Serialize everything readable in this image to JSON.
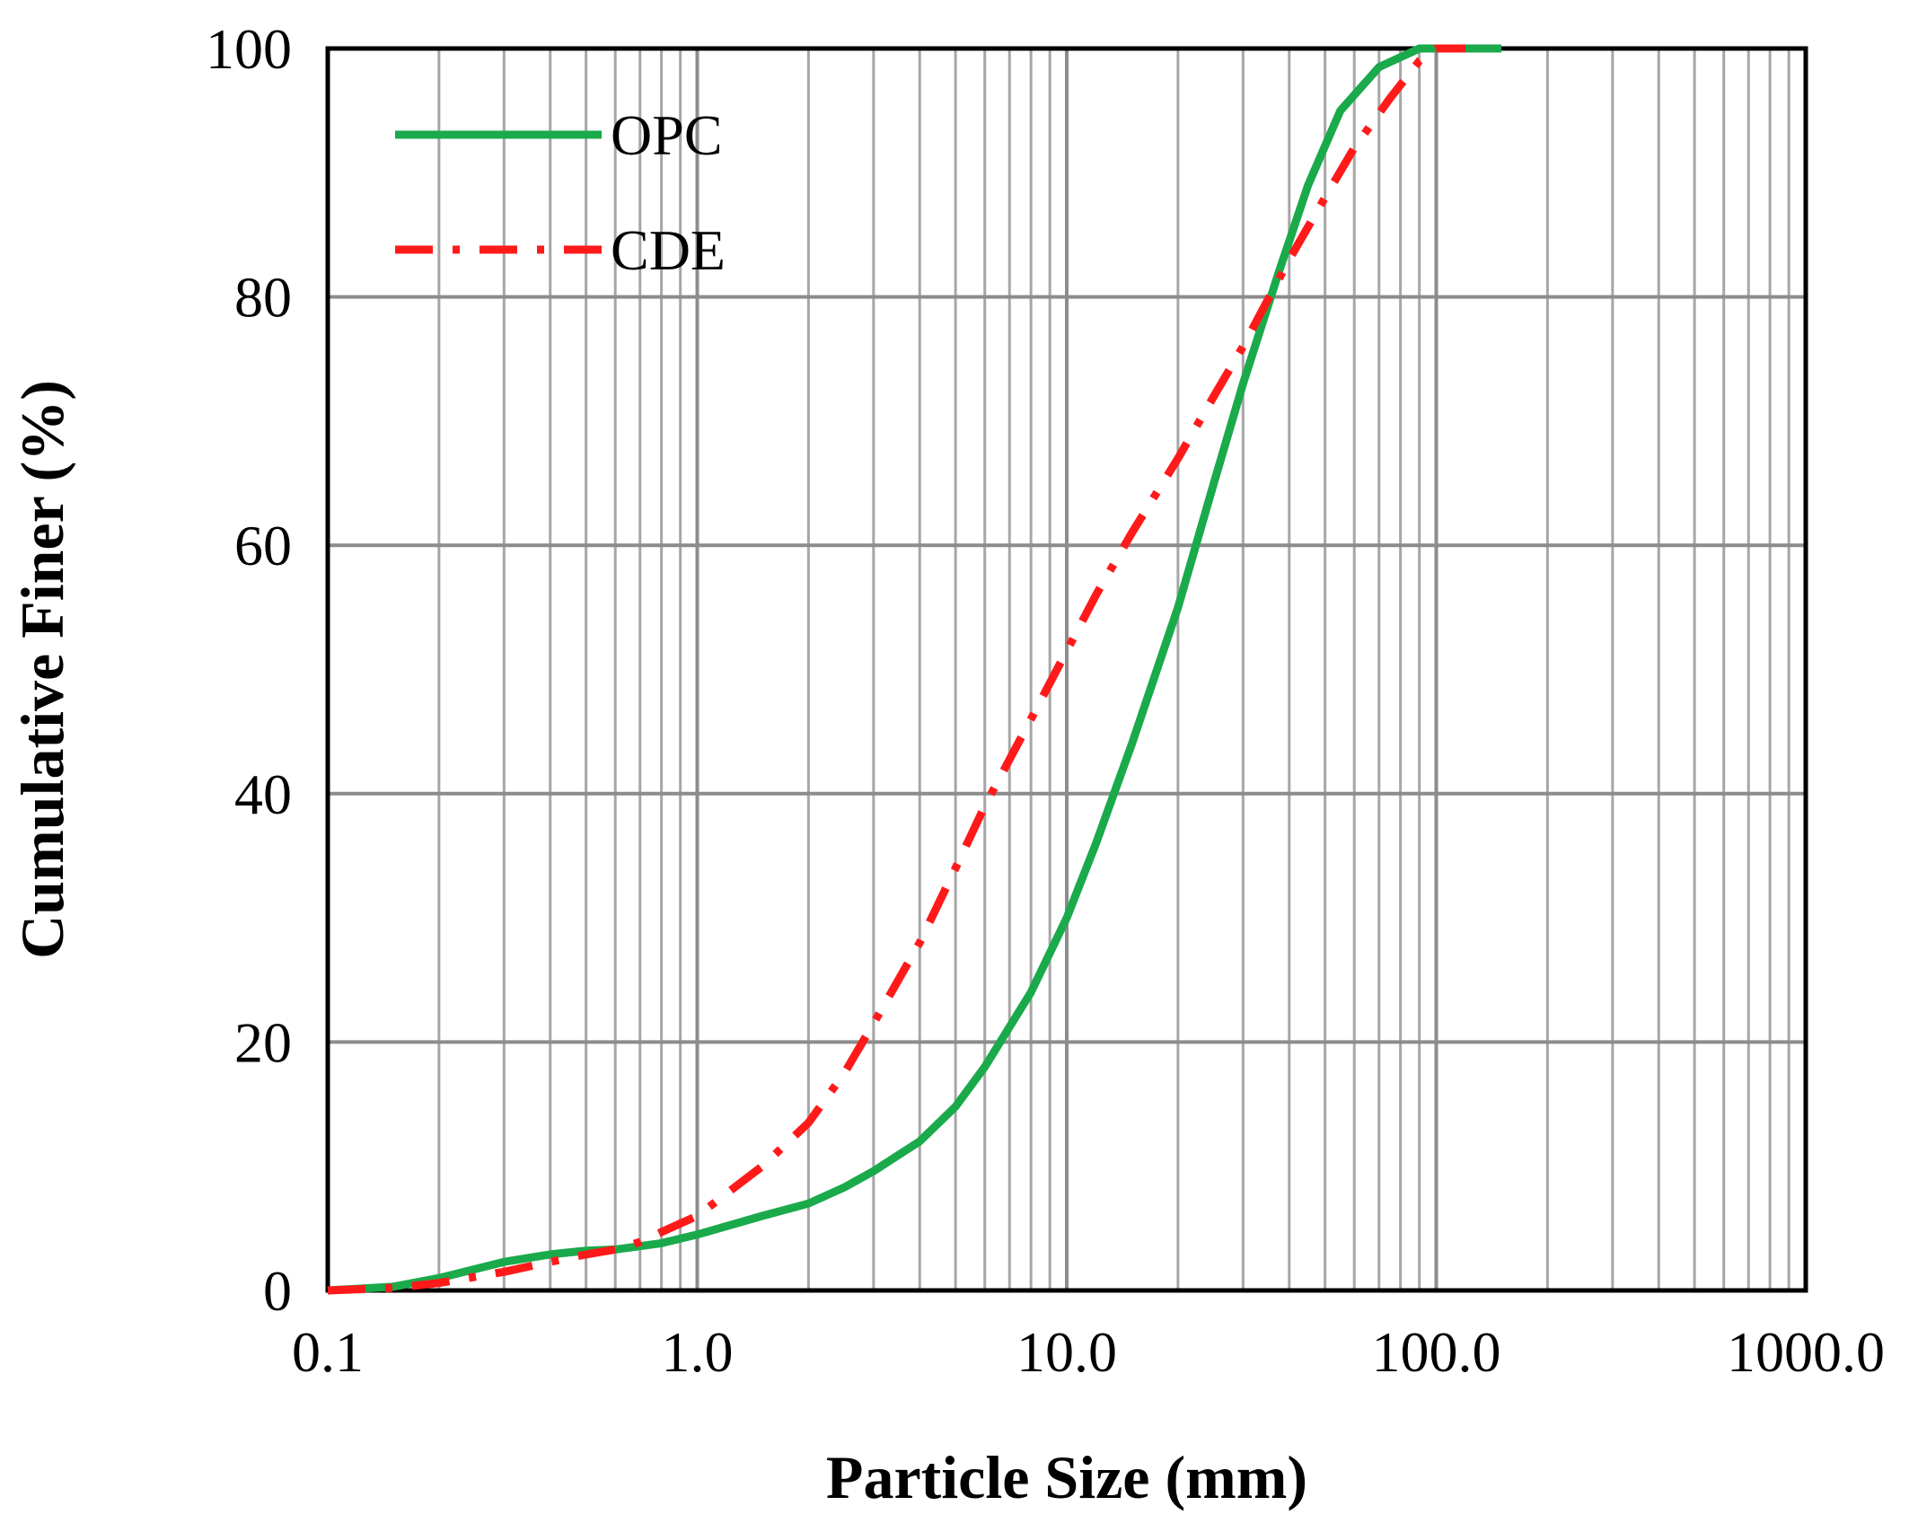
{
  "chart_data": {
    "type": "line",
    "xscale": "log",
    "xlim": [
      0.1,
      1000
    ],
    "ylim": [
      0,
      100
    ],
    "xlabel": "Particle Size (mm)",
    "ylabel": "Cumulative Finer (%)",
    "x_tick_values": [
      0.1,
      1,
      10,
      100,
      1000
    ],
    "x_tick_labels": [
      "0.1",
      "1.0",
      "10.0",
      "100.0",
      "1000.0"
    ],
    "y_tick_values": [
      0,
      20,
      40,
      60,
      80,
      100
    ],
    "y_tick_labels": [
      "0",
      "20",
      "40",
      "60",
      "80",
      "100"
    ],
    "grid": true,
    "legend_position": "top-left",
    "series": [
      {
        "name": "OPC",
        "color": "#1aaa4b",
        "style": "solid",
        "x": [
          0.1,
          0.15,
          0.2,
          0.3,
          0.4,
          0.5,
          0.6,
          0.8,
          1.0,
          1.5,
          2.0,
          2.5,
          3.0,
          4.0,
          5.0,
          6.0,
          8.0,
          10.0,
          12.0,
          15.0,
          20.0,
          25.0,
          30.0,
          37.5,
          45.0,
          55.0,
          70.0,
          90.0,
          150.0
        ],
        "y": [
          0,
          0.3,
          1,
          2.3,
          2.9,
          3.2,
          3.3,
          3.8,
          4.5,
          6,
          7,
          8.3,
          9.6,
          12,
          14.8,
          18,
          24,
          30,
          36,
          44,
          55,
          65,
          73,
          82,
          89,
          95,
          98.5,
          100,
          100
        ]
      },
      {
        "name": "CDE",
        "color": "#ff1a1a",
        "style": "dashdot",
        "x": [
          0.1,
          0.15,
          0.2,
          0.3,
          0.4,
          0.5,
          0.6,
          0.7,
          0.8,
          1.0,
          1.2,
          1.5,
          2.0,
          2.5,
          3.0,
          4.0,
          5.0,
          6.0,
          8.0,
          10.0,
          12.0,
          15.0,
          20.0,
          25.0,
          30.0,
          40.0,
          50.0,
          60.0,
          75.0,
          90.0,
          100.0,
          120.0
        ],
        "y": [
          0,
          0.2,
          0.6,
          1.5,
          2.3,
          2.9,
          3.3,
          3.9,
          4.7,
          6,
          7.8,
          10,
          13.5,
          17.5,
          21.5,
          28,
          34,
          39,
          46,
          51.5,
          56,
          61,
          67,
          72,
          76,
          83,
          88,
          92,
          96,
          99,
          100,
          100
        ]
      }
    ]
  }
}
